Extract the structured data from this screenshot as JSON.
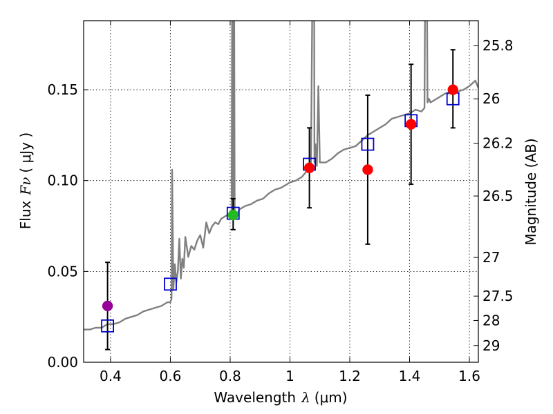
{
  "chart_data": {
    "type": "scatter",
    "title": "",
    "xlabel": "Wavelength",
    "xlabel_symbol": "λ",
    "xlabel_unit": "(μm)",
    "ylabel": "Flux",
    "ylabel_symbol": "Fν",
    "ylabel_unit": "( μJy )",
    "ylabel_right": "Magnitude (AB)",
    "xlim": [
      0.31,
      1.63
    ],
    "ylim": [
      0.0,
      0.188
    ],
    "grid": true,
    "x_ticks": [
      0.4,
      0.6,
      0.8,
      1.0,
      1.2,
      1.4,
      1.6
    ],
    "x_tick_labels": [
      "0.4",
      "0.6",
      "0.8",
      "1",
      "1.2",
      "1.4",
      "1.6"
    ],
    "y_ticks": [
      0.0,
      0.05,
      0.1,
      0.15
    ],
    "y_tick_labels": [
      "0.00",
      "0.05",
      "0.10",
      "0.15"
    ],
    "right_ticks": [
      {
        "label": "25.8",
        "flux": 0.1744
      },
      {
        "label": "26",
        "flux": 0.145
      },
      {
        "label": "26.2",
        "flux": 0.1206
      },
      {
        "label": "26.5",
        "flux": 0.0915
      },
      {
        "label": "27",
        "flux": 0.0577
      },
      {
        "label": "27.5",
        "flux": 0.0364
      },
      {
        "label": "28",
        "flux": 0.023
      },
      {
        "label": "29",
        "flux": 0.0092
      }
    ],
    "series": [
      {
        "name": "model-spectrum",
        "kind": "line",
        "color": "#808080",
        "x": [
          0.31,
          0.33,
          0.35,
          0.37,
          0.39,
          0.41,
          0.43,
          0.45,
          0.47,
          0.49,
          0.51,
          0.53,
          0.55,
          0.57,
          0.59,
          0.6,
          0.604,
          0.606,
          0.61,
          0.615,
          0.62,
          0.625,
          0.63,
          0.635,
          0.64,
          0.645,
          0.65,
          0.66,
          0.67,
          0.68,
          0.69,
          0.7,
          0.71,
          0.72,
          0.73,
          0.74,
          0.75,
          0.76,
          0.77,
          0.78,
          0.79,
          0.8,
          0.805,
          0.808,
          0.81,
          0.812,
          0.815,
          0.82,
          0.83,
          0.85,
          0.87,
          0.89,
          0.91,
          0.93,
          0.95,
          0.97,
          0.99,
          1.0,
          1.02,
          1.04,
          1.05,
          1.06,
          1.07,
          1.08,
          1.082,
          1.085,
          1.09,
          1.095,
          1.1,
          1.12,
          1.14,
          1.16,
          1.18,
          1.2,
          1.22,
          1.24,
          1.26,
          1.28,
          1.3,
          1.32,
          1.34,
          1.36,
          1.38,
          1.4,
          1.42,
          1.44,
          1.45,
          1.455,
          1.46,
          1.465,
          1.47,
          1.48,
          1.5,
          1.52,
          1.54,
          1.56,
          1.58,
          1.6,
          1.62,
          1.63
        ],
        "y": [
          0.018,
          0.018,
          0.019,
          0.019,
          0.021,
          0.021,
          0.022,
          0.024,
          0.025,
          0.026,
          0.028,
          0.029,
          0.03,
          0.031,
          0.033,
          0.033,
          0.035,
          0.106,
          0.04,
          0.054,
          0.044,
          0.05,
          0.068,
          0.046,
          0.057,
          0.052,
          0.069,
          0.058,
          0.064,
          0.062,
          0.067,
          0.07,
          0.063,
          0.077,
          0.071,
          0.075,
          0.077,
          0.076,
          0.079,
          0.08,
          0.081,
          0.081,
          0.082,
          0.3,
          0.08,
          0.3,
          0.08,
          0.08,
          0.084,
          0.086,
          0.087,
          0.089,
          0.09,
          0.093,
          0.095,
          0.096,
          0.098,
          0.099,
          0.1,
          0.102,
          0.104,
          0.106,
          0.108,
          0.3,
          0.11,
          0.12,
          0.108,
          0.152,
          0.11,
          0.11,
          0.112,
          0.115,
          0.117,
          0.118,
          0.119,
          0.122,
          0.125,
          0.127,
          0.129,
          0.131,
          0.134,
          0.135,
          0.136,
          0.137,
          0.139,
          0.138,
          0.14,
          0.3,
          0.143,
          0.145,
          0.143,
          0.144,
          0.146,
          0.148,
          0.148,
          0.149,
          0.15,
          0.152,
          0.155,
          0.151
        ]
      },
      {
        "name": "model-band-flux",
        "kind": "open-square",
        "color": "#0000cc",
        "x": [
          0.39,
          0.6,
          0.81,
          1.065,
          1.26,
          1.405,
          1.545
        ],
        "y": [
          0.02,
          0.043,
          0.082,
          0.109,
          0.12,
          0.133,
          0.145
        ]
      },
      {
        "name": "observed-flux",
        "kind": "filled-circle",
        "x": [
          0.39,
          0.81,
          1.065,
          1.26,
          1.405,
          1.545
        ],
        "y": [
          0.031,
          0.081,
          0.107,
          0.106,
          0.131,
          0.15
        ],
        "yerr_low": [
          0.007,
          0.073,
          0.085,
          0.065,
          0.098,
          0.129
        ],
        "yerr_high": [
          0.055,
          0.09,
          0.129,
          0.147,
          0.164,
          0.172
        ],
        "colors": [
          "#990099",
          "#22bb22",
          "#ff0000",
          "#ff0000",
          "#ff0000",
          "#ff0000"
        ]
      }
    ]
  }
}
